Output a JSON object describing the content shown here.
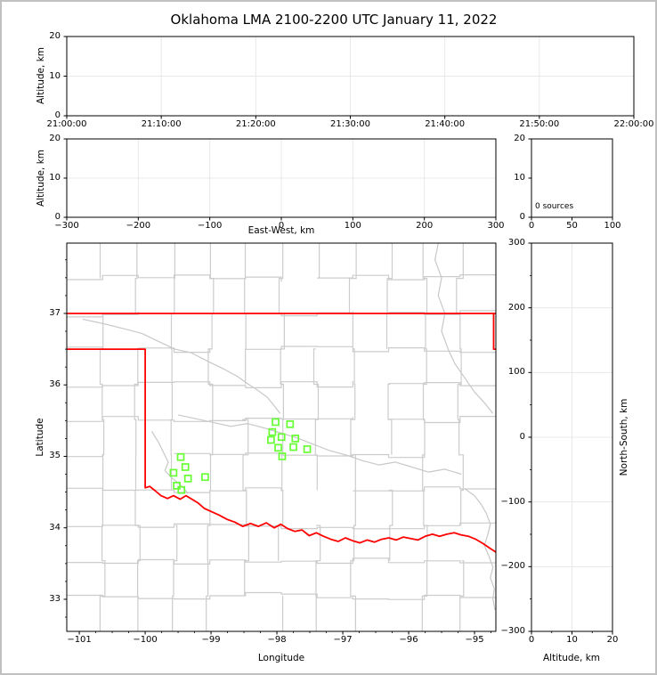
{
  "chart_data": {
    "type": "multi-panel-lma-display",
    "title": "Oklahoma LMA 2100-2200 UTC January 11, 2022",
    "panels": [
      {
        "id": "alt_time",
        "type": "scatter",
        "ylabel": "Altitude, km",
        "x_range": [
          0,
          3600
        ],
        "y_range": [
          0,
          20
        ],
        "grid": true,
        "x_tick_vals": [
          0,
          600,
          1200,
          1800,
          2400,
          3000,
          3600
        ],
        "x_tick_labels": [
          "21:00:00",
          "21:10:00",
          "21:20:00",
          "21:30:00",
          "21:40:00",
          "21:50:00",
          "22:00:00"
        ],
        "y_tick_vals": [
          0,
          10,
          20
        ],
        "y_tick_labels": [
          "0",
          "10",
          "20"
        ],
        "points": []
      },
      {
        "id": "alt_ew",
        "type": "scatter",
        "xlabel": "East-West, km",
        "ylabel": "Altitude, km",
        "x_range": [
          -300,
          300
        ],
        "y_range": [
          0,
          20
        ],
        "grid": true,
        "x_tick_vals": [
          -300,
          -200,
          -100,
          0,
          100,
          200,
          300
        ],
        "x_tick_labels": [
          "−300",
          "−200",
          "−100",
          "0",
          "100",
          "200",
          "300"
        ],
        "y_tick_vals": [
          0,
          10,
          20
        ],
        "y_tick_labels": [
          "0",
          "10",
          "20"
        ],
        "points": []
      },
      {
        "id": "hist",
        "type": "histogram",
        "annotation": "0 sources",
        "x_range": [
          0,
          100
        ],
        "y_range": [
          0,
          20
        ],
        "grid": false,
        "x_tick_vals": [
          0,
          50,
          100
        ],
        "x_tick_labels": [
          "0",
          "50",
          "100"
        ],
        "y_tick_vals": [
          0,
          10,
          20
        ],
        "y_tick_labels": [
          "0",
          "10",
          "20"
        ],
        "points": []
      },
      {
        "id": "plan",
        "type": "map-scatter",
        "xlabel": "Longitude",
        "ylabel": "Latitude",
        "x_range": [
          -101.19,
          -94.676
        ],
        "y_range": [
          32.551,
          37.984
        ],
        "grid": false,
        "x_tick_vals": [
          -101,
          -100,
          -99,
          -98,
          -97,
          -96,
          -95
        ],
        "x_tick_labels": [
          "−101",
          "−100",
          "−99",
          "−98",
          "−97",
          "−96",
          "−95"
        ],
        "y_tick_vals": [
          33,
          34,
          35,
          36,
          37
        ],
        "y_tick_labels": [
          "33",
          "34",
          "35",
          "36",
          "37"
        ],
        "x_minor_step": 0.25,
        "y_minor_step": 0.25,
        "stations": [
          [
            -99.46,
            34.99
          ],
          [
            -99.39,
            34.85
          ],
          [
            -99.57,
            34.77
          ],
          [
            -99.35,
            34.69
          ],
          [
            -99.09,
            34.71
          ],
          [
            -99.52,
            34.59
          ],
          [
            -99.45,
            34.53
          ],
          [
            -98.02,
            35.48
          ],
          [
            -97.8,
            35.45
          ],
          [
            -98.07,
            35.34
          ],
          [
            -97.93,
            35.27
          ],
          [
            -98.09,
            35.23
          ],
          [
            -97.72,
            35.25
          ],
          [
            -97.98,
            35.12
          ],
          [
            -97.75,
            35.13
          ],
          [
            -97.54,
            35.1
          ],
          [
            -97.92,
            35.0
          ]
        ]
      },
      {
        "id": "alt_ns",
        "type": "scatter",
        "xlabel": "Altitude, km",
        "ylabel": "North-South, km",
        "x_range": [
          0,
          20
        ],
        "y_range": [
          -300,
          300
        ],
        "grid": true,
        "x_tick_vals": [
          0,
          10,
          20
        ],
        "x_tick_labels": [
          "0",
          "10",
          "20"
        ],
        "x_minor_step": 5,
        "y_minor_step": 50,
        "y_tick_vals": [
          -300,
          -200,
          -100,
          0,
          100,
          200,
          300
        ],
        "y_tick_labels": [
          "−300",
          "−200",
          "−100",
          "0",
          "100",
          "200",
          "300"
        ],
        "points": []
      }
    ],
    "map_overlay": {
      "state_border": [
        [
          [
            -101.19,
            37.0
          ],
          [
            -94.676,
            37.0
          ]
        ],
        [
          [
            -94.71,
            37.0
          ],
          [
            -94.71,
            36.5
          ],
          [
            -94.676,
            36.5
          ]
        ],
        [
          [
            -101.19,
            36.5
          ],
          [
            -100.0,
            36.5
          ],
          [
            -100.0,
            34.56
          ],
          [
            -99.93,
            34.58
          ],
          [
            -99.85,
            34.52
          ],
          [
            -99.76,
            34.45
          ],
          [
            -99.66,
            34.41
          ],
          [
            -99.57,
            34.45
          ],
          [
            -99.47,
            34.4
          ],
          [
            -99.38,
            34.45
          ],
          [
            -99.29,
            34.4
          ],
          [
            -99.2,
            34.35
          ],
          [
            -99.1,
            34.27
          ],
          [
            -99.0,
            34.23
          ],
          [
            -98.88,
            34.18
          ],
          [
            -98.76,
            34.12
          ],
          [
            -98.64,
            34.08
          ],
          [
            -98.52,
            34.02
          ],
          [
            -98.4,
            34.06
          ],
          [
            -98.28,
            34.02
          ],
          [
            -98.16,
            34.07
          ],
          [
            -98.04,
            34.0
          ],
          [
            -97.94,
            34.05
          ],
          [
            -97.84,
            33.99
          ],
          [
            -97.73,
            33.95
          ],
          [
            -97.62,
            33.97
          ],
          [
            -97.51,
            33.89
          ],
          [
            -97.4,
            33.93
          ],
          [
            -97.29,
            33.88
          ],
          [
            -97.18,
            33.84
          ],
          [
            -97.07,
            33.81
          ],
          [
            -96.96,
            33.86
          ],
          [
            -96.85,
            33.82
          ],
          [
            -96.74,
            33.79
          ],
          [
            -96.63,
            33.83
          ],
          [
            -96.52,
            33.8
          ],
          [
            -96.41,
            33.84
          ],
          [
            -96.3,
            33.86
          ],
          [
            -96.19,
            33.83
          ],
          [
            -96.08,
            33.87
          ],
          [
            -95.97,
            33.85
          ],
          [
            -95.86,
            33.83
          ],
          [
            -95.75,
            33.88
          ],
          [
            -95.64,
            33.91
          ],
          [
            -95.53,
            33.88
          ],
          [
            -95.42,
            33.91
          ],
          [
            -95.31,
            33.93
          ],
          [
            -95.2,
            33.9
          ],
          [
            -95.09,
            33.88
          ],
          [
            -94.98,
            33.84
          ],
          [
            -94.87,
            33.78
          ],
          [
            -94.76,
            33.71
          ],
          [
            -94.676,
            33.66
          ]
        ]
      ],
      "rivers": [
        [
          [
            -100.95,
            36.92
          ],
          [
            -100.6,
            36.85
          ],
          [
            -100.3,
            36.78
          ],
          [
            -100.05,
            36.72
          ],
          [
            -99.8,
            36.61
          ],
          [
            -99.55,
            36.5
          ],
          [
            -99.3,
            36.45
          ],
          [
            -99.05,
            36.33
          ],
          [
            -98.8,
            36.22
          ],
          [
            -98.6,
            36.12
          ],
          [
            -98.45,
            36.02
          ],
          [
            -98.3,
            35.93
          ],
          [
            -98.15,
            35.83
          ],
          [
            -98.05,
            35.72
          ],
          [
            -97.95,
            35.6
          ]
        ],
        [
          [
            -99.5,
            35.58
          ],
          [
            -99.2,
            35.52
          ],
          [
            -98.95,
            35.47
          ],
          [
            -98.7,
            35.42
          ],
          [
            -98.45,
            35.46
          ],
          [
            -98.2,
            35.4
          ],
          [
            -97.95,
            35.33
          ],
          [
            -97.7,
            35.26
          ],
          [
            -97.45,
            35.17
          ],
          [
            -97.2,
            35.08
          ],
          [
            -96.95,
            35.02
          ],
          [
            -96.7,
            34.94
          ],
          [
            -96.45,
            34.88
          ],
          [
            -96.2,
            34.92
          ],
          [
            -95.95,
            34.85
          ],
          [
            -95.7,
            34.78
          ],
          [
            -95.45,
            34.82
          ],
          [
            -95.2,
            34.75
          ]
        ],
        [
          [
            -95.55,
            37.98
          ],
          [
            -95.6,
            37.75
          ],
          [
            -95.5,
            37.5
          ],
          [
            -95.55,
            37.25
          ],
          [
            -95.45,
            37.0
          ],
          [
            -95.5,
            36.75
          ],
          [
            -95.4,
            36.5
          ],
          [
            -95.3,
            36.3
          ],
          [
            -95.15,
            36.1
          ],
          [
            -95.0,
            35.9
          ],
          [
            -94.85,
            35.75
          ],
          [
            -94.72,
            35.6
          ]
        ],
        [
          [
            -99.9,
            35.35
          ],
          [
            -99.8,
            35.2
          ],
          [
            -99.72,
            35.05
          ],
          [
            -99.65,
            34.92
          ],
          [
            -99.7,
            34.8
          ],
          [
            -99.6,
            34.7
          ],
          [
            -99.5,
            34.63
          ],
          [
            -99.42,
            34.56
          ],
          [
            -99.35,
            34.48
          ]
        ],
        [
          [
            -95.15,
            34.55
          ],
          [
            -95.0,
            34.45
          ],
          [
            -94.9,
            34.33
          ],
          [
            -94.82,
            34.2
          ],
          [
            -94.76,
            34.05
          ],
          [
            -94.8,
            33.9
          ],
          [
            -94.85,
            33.75
          ],
          [
            -94.78,
            33.6
          ],
          [
            -94.72,
            33.45
          ],
          [
            -94.76,
            33.3
          ],
          [
            -94.7,
            33.15
          ],
          [
            -94.72,
            33.0
          ],
          [
            -94.69,
            32.85
          ]
        ]
      ]
    },
    "style": {
      "station_color": "#66ff33",
      "border_color": "#ff0000",
      "county_color": "#cccccc",
      "river_color": "#c8c8c8",
      "grid_color": "#e8e8e8",
      "axis_color": "#000000",
      "frame_color": "#c0c0c0"
    }
  }
}
